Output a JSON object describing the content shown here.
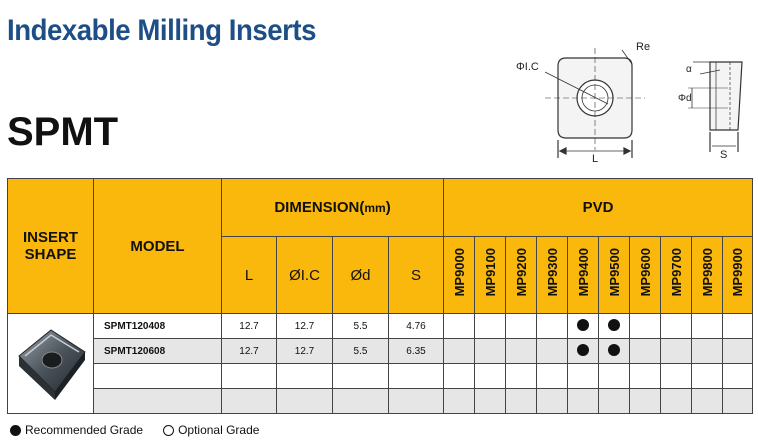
{
  "page": {
    "title": "Indexable Milling Inserts",
    "code": "SPMT"
  },
  "diagram": {
    "label_ic": "ΦI.C",
    "label_re": "Re",
    "label_l": "L",
    "label_alpha": "α",
    "label_d": "Φd",
    "label_s": "S"
  },
  "table": {
    "insert_shape_header": "INSERT SHAPE",
    "model_header": "MODEL",
    "dimension_header": "DIMENSION(",
    "dimension_unit": "mm",
    "dimension_close": ")",
    "pvd_header": "PVD",
    "dimension_columns": [
      "L",
      "ØI.C",
      "Ød",
      "S"
    ],
    "grades": [
      "MP9000",
      "MP9100",
      "MP9200",
      "MP9300",
      "MP9400",
      "MP9500",
      "MP9600",
      "MP9700",
      "MP9800",
      "MP9900"
    ],
    "rows": [
      {
        "model": "SPMT120408",
        "L": "12.7",
        "IC": "12.7",
        "d": "5.5",
        "S": "4.76",
        "grades": [
          "",
          "",
          "",
          "",
          "recommended",
          "recommended",
          "",
          "",
          "",
          ""
        ]
      },
      {
        "model": "SPMT120608",
        "L": "12.7",
        "IC": "12.7",
        "d": "5.5",
        "S": "6.35",
        "grades": [
          "",
          "",
          "",
          "",
          "recommended",
          "recommended",
          "",
          "",
          "",
          ""
        ]
      },
      {
        "model": "",
        "L": "",
        "IC": "",
        "d": "",
        "S": "",
        "grades": [
          "",
          "",
          "",
          "",
          "",
          "",
          "",
          "",
          "",
          ""
        ]
      },
      {
        "model": "",
        "L": "",
        "IC": "",
        "d": "",
        "S": "",
        "grades": [
          "",
          "",
          "",
          "",
          "",
          "",
          "",
          "",
          "",
          ""
        ]
      }
    ]
  },
  "legend": {
    "recommended": "Recommended Grade",
    "optional": "Optional Grade"
  }
}
